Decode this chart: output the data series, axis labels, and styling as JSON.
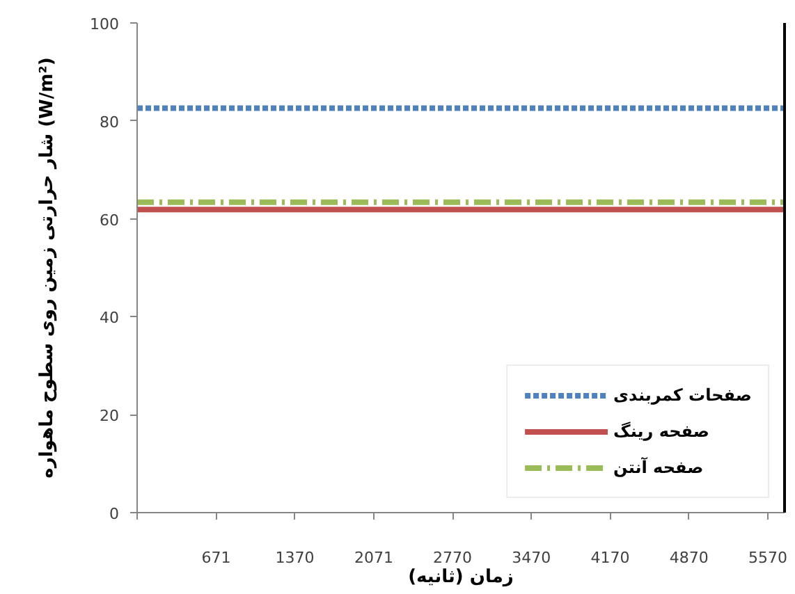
{
  "chart_data": {
    "type": "line",
    "xlabel": "زمان (ثانیه)",
    "ylabel": "شار حرارتی زمین روی سطوح ماهواره (W/m²)",
    "x": [
      -30,
      5718
    ],
    "xlim": [
      -30,
      5718
    ],
    "xticks": [
      {
        "value": -30,
        "label": null
      },
      671,
      1370,
      2071,
      2770,
      3470,
      4170,
      4870,
      5570
    ],
    "ylim": [
      0,
      100
    ],
    "yticks": [
      0,
      20,
      40,
      60,
      80,
      100
    ],
    "grid": false,
    "legend": "bottom right",
    "marker": "none",
    "series": [
      {
        "name": "صفحات کمربندی",
        "color": "#4f81bd",
        "values": [
          82.6,
          82.6
        ],
        "line_style": "dashed"
      },
      {
        "name": "صفحه رینگ",
        "color": "#c0504d",
        "values": [
          61.9,
          61.9
        ],
        "line_style": "solid"
      },
      {
        "name": "صفحه آنتن",
        "color": "#9bbb59",
        "values": [
          63.4,
          63.4
        ],
        "line_style": "dashdot"
      }
    ]
  }
}
